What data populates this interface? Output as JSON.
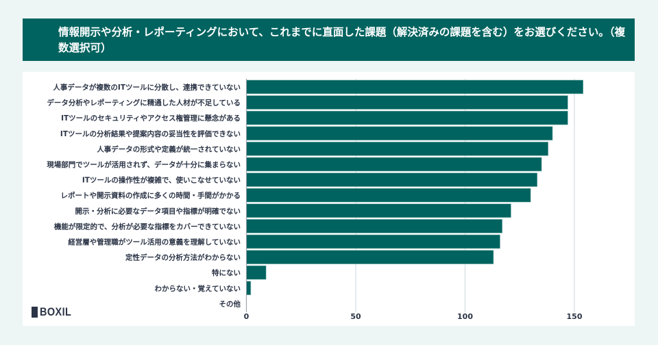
{
  "title": "情報開示や分析・レポーティングにおいて、これまでに直面した課題（解決済みの課題を含む）をお選びください。（複数選択可）",
  "logo": {
    "text": "BOXIL"
  },
  "colors": {
    "bar": "#00635f",
    "header": "#00635f",
    "grid": "#dde2e6",
    "background": "#eef6f5"
  },
  "chart_data": {
    "type": "bar",
    "orientation": "horizontal",
    "title": "情報開示や分析・レポーティングにおいて、これまでに直面した課題（解決済みの課題を含む）をお選びください。（複数選択可）",
    "categories": [
      "人事データが複数のITツールに分散し、連携できていない",
      "データ分析やレポーティングに精通した人材が不足している",
      "ITツールのセキュリティやアクセス権管理に懸念がある",
      "ITツールの分析結果や提案内容の妥当性を評価できない",
      "人事データの形式や定義が統一されていない",
      "現場部門でツールが活用されず、データが十分に集まらない",
      "ITツールの操作性が複雑で、使いこなせていない",
      "レポートや開示資料の作成に多くの時間・手間がかかる",
      "開示・分析に必要なデータ項目や指標が明確でない",
      "機能が限定的で、分析が必要な指標をカバーできていない",
      "経営層や管理職がツール活用の意義を理解していない",
      "定性データの分析方法がわからない",
      "特にない",
      "わからない・覚えていない",
      "その他"
    ],
    "values": [
      154,
      147,
      147,
      140,
      138,
      135,
      133,
      130,
      121,
      117,
      116,
      113,
      9,
      2,
      0
    ],
    "xlim": [
      0,
      176
    ],
    "xticks": [
      "0",
      "50",
      "100",
      "150"
    ],
    "grid": true
  }
}
